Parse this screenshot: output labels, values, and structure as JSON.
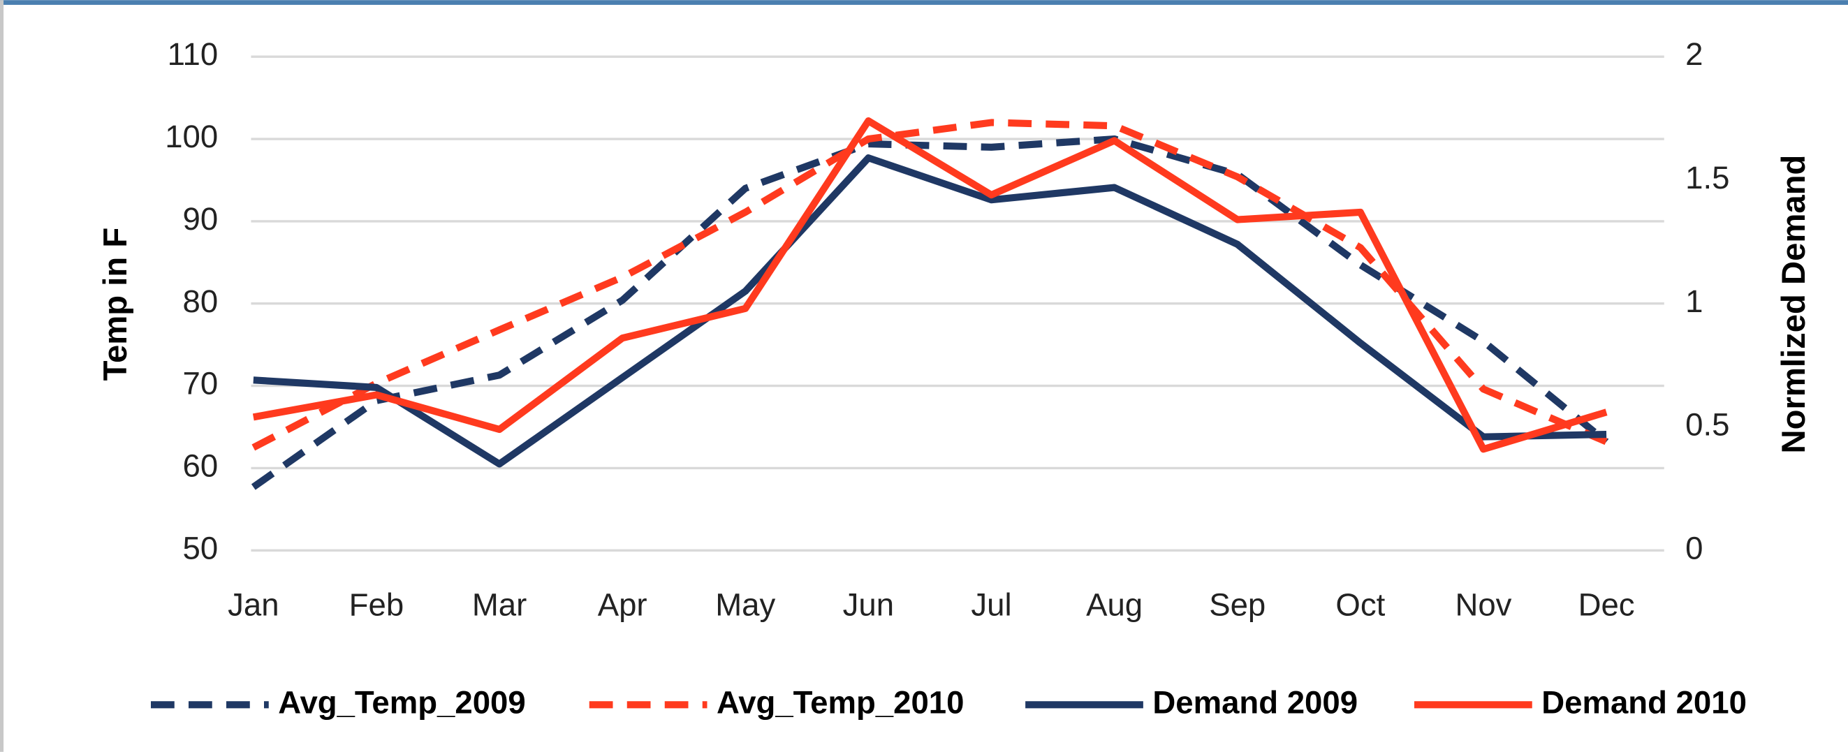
{
  "chart_data": {
    "type": "line",
    "categories": [
      "Jan",
      "Feb",
      "Mar",
      "Apr",
      "May",
      "Jun",
      "Jul",
      "Aug",
      "Sep",
      "Oct",
      "Nov",
      "Dec"
    ],
    "ylabel": "Temp in F",
    "y2label": "Normlized Demand",
    "ylim": [
      50,
      110
    ],
    "yticks": [
      50,
      60,
      70,
      80,
      90,
      100,
      110
    ],
    "y2lim": [
      0,
      2
    ],
    "y2ticks": [
      0,
      0.5,
      1,
      1.5,
      2
    ],
    "grid": true,
    "legend": "bottom",
    "series": [
      {
        "name": "Avg_Temp_2009",
        "color": "#1f3864",
        "style": "dashed",
        "values": [
          57.7,
          68.2,
          71.3,
          80.4,
          94,
          99.4,
          99,
          100,
          95.7,
          84.7,
          75.4,
          63.2
        ]
      },
      {
        "name": "Avg_Temp_2010",
        "color": "#ff3a1e",
        "style": "dashed",
        "values": [
          62.5,
          70.3,
          76.8,
          83.2,
          91.1,
          100,
          102,
          101.6,
          95.4,
          86.8,
          69.6,
          63.2
        ]
      },
      {
        "name": "Demand 2009",
        "color": "#1f3864",
        "style": "solid",
        "axis": "y2",
        "values": [
          0.69,
          0.66,
          0.35,
          0.7,
          1.05,
          1.59,
          1.42,
          1.47,
          1.24,
          0.84,
          0.46,
          0.47
        ]
      },
      {
        "name": "Demand 2010",
        "color": "#ff3a1e",
        "style": "solid",
        "axis": "y2",
        "values": [
          0.54,
          0.63,
          0.49,
          0.86,
          0.98,
          1.74,
          1.44,
          1.66,
          1.34,
          1.37,
          0.41,
          0.56
        ]
      }
    ]
  }
}
